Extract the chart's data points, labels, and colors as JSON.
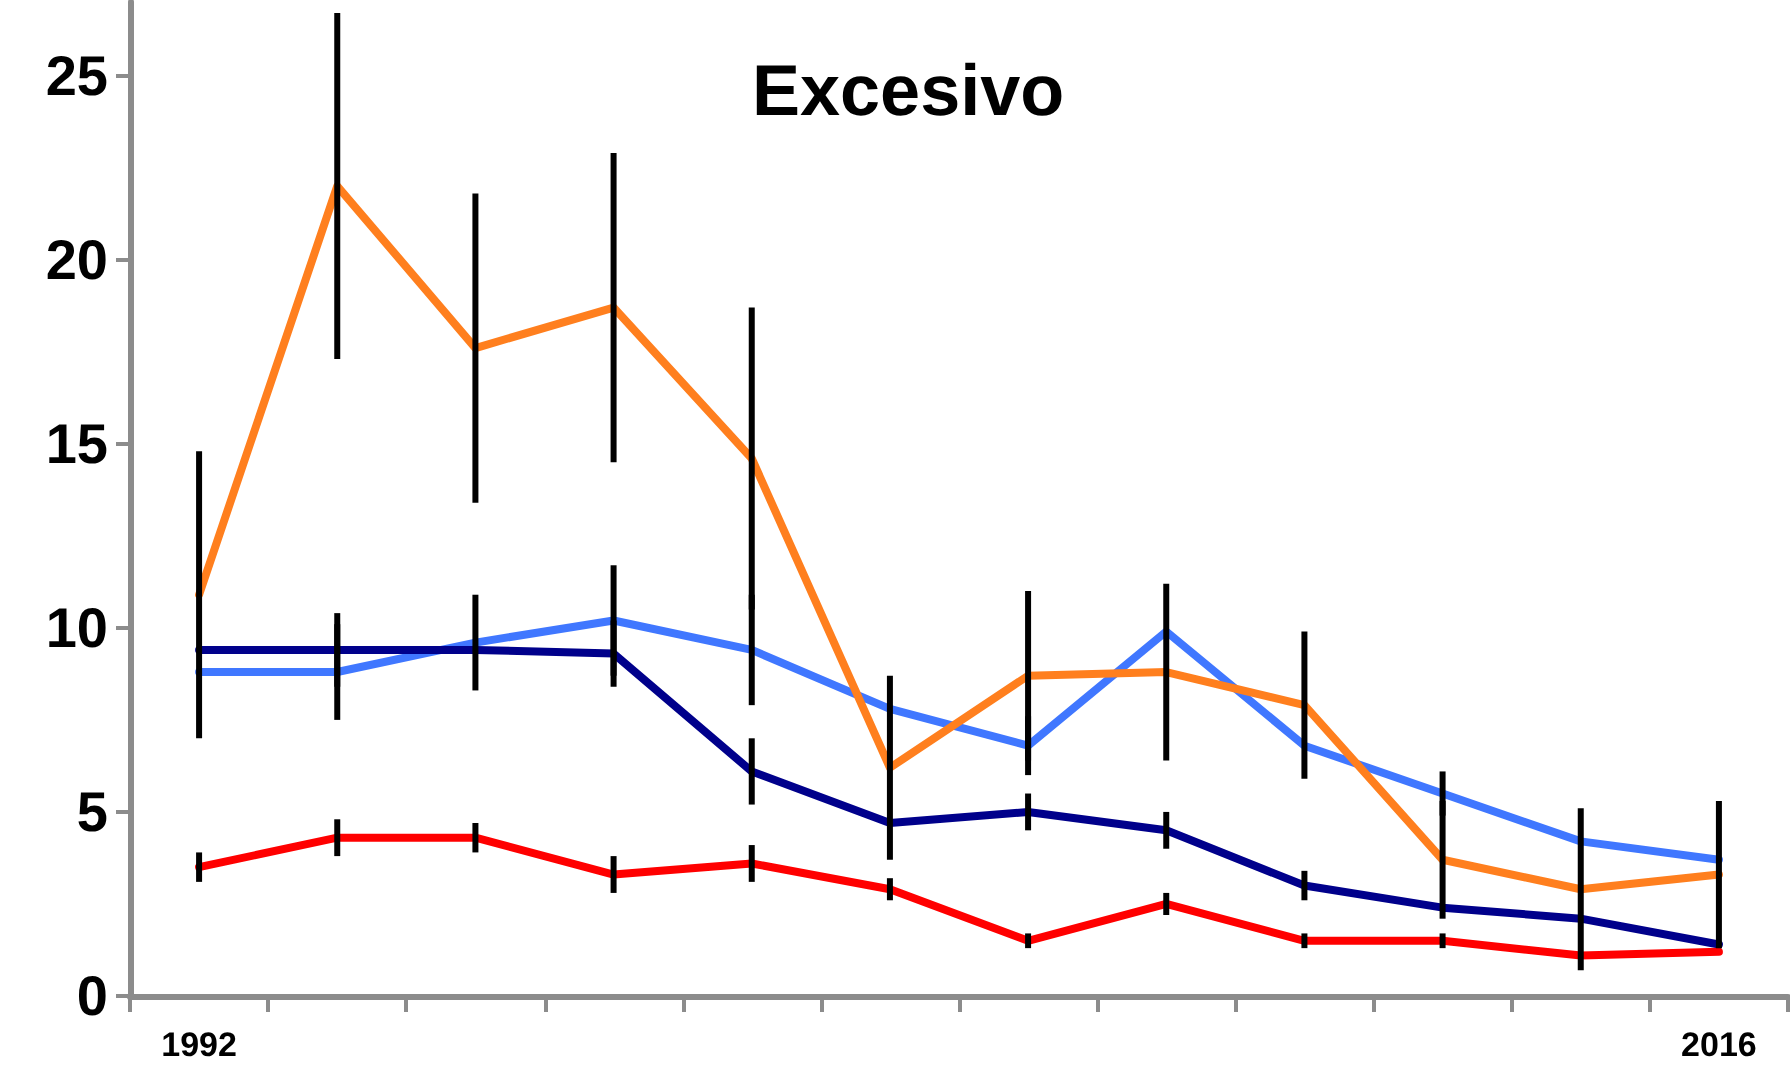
{
  "chart_data": {
    "type": "line",
    "title": "Excesivo",
    "categories": [
      "1992",
      null,
      null,
      null,
      null,
      null,
      null,
      null,
      null,
      null,
      null,
      "2016"
    ],
    "series": [
      {
        "color": "#4077ff",
        "values": [
          8.8,
          8.8,
          9.6,
          10.2,
          9.4,
          7.8,
          6.8,
          9.9,
          6.8,
          5.5,
          4.2,
          3.7
        ],
        "errors": [
          null,
          1.3,
          1.3,
          1.5,
          1.5,
          null,
          0.8,
          null,
          null,
          0.6,
          null,
          null
        ]
      },
      {
        "color": "#ff7f1e",
        "values": [
          10.9,
          22,
          17.6,
          18.7,
          14.6,
          6.2,
          8.7,
          8.8,
          7.9,
          3.7,
          2.9,
          3.3
        ],
        "errors": [
          3.9,
          4.7,
          4.2,
          4.2,
          4.1,
          2.5,
          2.3,
          2.4,
          2.0,
          1.6,
          2.2,
          2.0
        ]
      },
      {
        "color": "#00008b",
        "values": [
          9.4,
          9.4,
          9.4,
          9.3,
          6.1,
          4.7,
          5.0,
          4.5,
          3.0,
          2.4,
          2.1,
          1.4
        ],
        "errors": [
          null,
          1.0,
          null,
          0.9,
          0.9,
          null,
          0.5,
          0.5,
          0.4,
          null,
          null,
          null
        ]
      },
      {
        "color": "#ff0000",
        "values": [
          3.5,
          4.3,
          4.3,
          3.3,
          3.6,
          2.9,
          1.5,
          2.5,
          1.5,
          1.5,
          1.1,
          1.2
        ],
        "errors": [
          0.4,
          0.5,
          0.4,
          0.5,
          0.5,
          0.3,
          0.2,
          0.3,
          0.2,
          0.2,
          null,
          null
        ]
      }
    ],
    "ylim": [
      0,
      27
    ],
    "yticks": [
      0,
      5,
      10,
      15,
      20,
      25
    ],
    "marker": "none",
    "line_style": "solid"
  }
}
